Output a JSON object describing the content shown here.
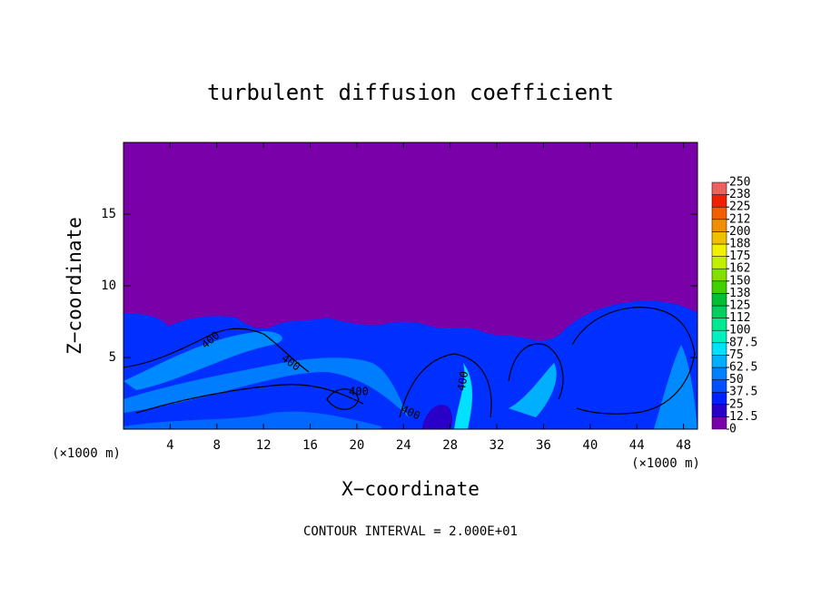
{
  "chart_data": {
    "type": "contour",
    "title": "turbulent diffusion coefficient",
    "xlabel": "X−coordinate",
    "ylabel": "Z−coordinate",
    "x_unit_labels": [
      "(×1000 m)",
      "(×1000 m)"
    ],
    "xlim": [
      0,
      49.2
    ],
    "ylim": [
      0,
      20
    ],
    "xticks": [
      4,
      8,
      12,
      16,
      20,
      24,
      28,
      32,
      36,
      40,
      44,
      48
    ],
    "yticks": [
      5,
      10,
      15
    ],
    "contour_labels": [
      "400",
      "400",
      "400",
      "400",
      "400"
    ],
    "footnote": "CONTOUR INTERVAL = 2.000E+01",
    "colorbar": {
      "levels": [
        0,
        12.5,
        25,
        37.5,
        50,
        62.5,
        75,
        87.5,
        100,
        {
          "value": 112.5,
          "label": "112"
        },
        125,
        {
          "value": 137.5,
          "label": "138"
        },
        150,
        {
          "value": 162.5,
          "label": "162"
        },
        175,
        {
          "value": 187.5,
          "label": "188"
        },
        200,
        {
          "value": 212.5,
          "label": "212"
        },
        225,
        {
          "value": 237.5,
          "label": "238"
        },
        250
      ],
      "colors": [
        "#7a00aa",
        "#2a00c8",
        "#0020ff",
        "#0050ff",
        "#0080ff",
        "#00b0ff",
        "#00e0ff",
        "#00f0c0",
        "#00e890",
        "#00d060",
        "#00c030",
        "#40d000",
        "#80e000",
        "#c0f000",
        "#f0f000",
        "#f0c000",
        "#f09000",
        "#f06000",
        "#f02000",
        "#f06060"
      ]
    }
  }
}
